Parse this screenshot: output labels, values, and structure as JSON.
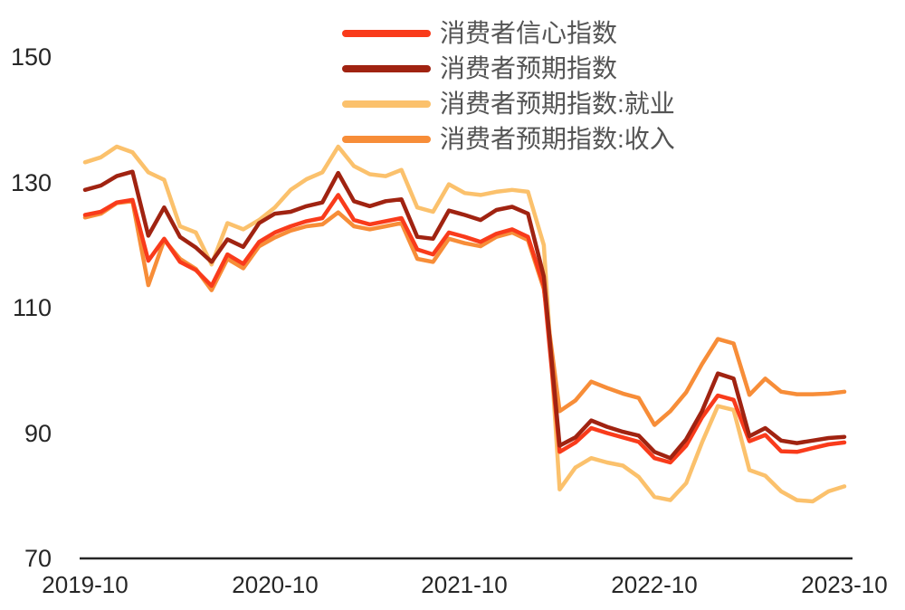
{
  "figure": {
    "background": "#ffffff",
    "accent_colors": {
      "confidence_red": "#F93B1B",
      "expectation_darkred": "#A02311",
      "employment_yellow": "#FBC16C",
      "income_orange": "#F78D38",
      "axis_text": "#262626",
      "legend_text": "#545454"
    }
  },
  "y_axis": {
    "ticks": [
      "150",
      "130",
      "110",
      "90",
      "70"
    ],
    "min": 70,
    "max": 150
  },
  "x_axis": {
    "labels": [
      "2019-10",
      "2020-10",
      "2021-10",
      "2022-10",
      "2023-10"
    ]
  },
  "legend": {
    "items": [
      {
        "label": "消费者信心指数",
        "color": "#F93B1B"
      },
      {
        "label": "消费者预期指数",
        "color": "#A02311"
      },
      {
        "label": "消费者预期指数:就业",
        "color": "#FBC16C"
      },
      {
        "label": "消费者预期指数:收入",
        "color": "#F78D38"
      }
    ]
  },
  "chart_data": {
    "type": "line",
    "title": "",
    "xlabel": "",
    "ylabel": "",
    "ylim": [
      70,
      150
    ],
    "yticks": [
      150,
      130,
      110,
      90,
      70
    ],
    "grid": false,
    "legend_position": "top-center",
    "xtick_labels": [
      "2019-10",
      "2020-10",
      "2021-10",
      "2022-10",
      "2023-10"
    ],
    "x": [
      "2019-10",
      "2019-11",
      "2019-12",
      "2020-01",
      "2020-02",
      "2020-03",
      "2020-04",
      "2020-05",
      "2020-06",
      "2020-07",
      "2020-08",
      "2020-09",
      "2020-10",
      "2020-11",
      "2020-12",
      "2021-01",
      "2021-02",
      "2021-03",
      "2021-04",
      "2021-05",
      "2021-06",
      "2021-07",
      "2021-08",
      "2021-09",
      "2021-10",
      "2021-11",
      "2021-12",
      "2022-01",
      "2022-02",
      "2022-03",
      "2022-04",
      "2022-05",
      "2022-06",
      "2022-07",
      "2022-08",
      "2022-09",
      "2022-10",
      "2022-11",
      "2022-12",
      "2023-01",
      "2023-02",
      "2023-03",
      "2023-04",
      "2023-05",
      "2023-06",
      "2023-07",
      "2023-08",
      "2023-09",
      "2023-10"
    ],
    "series": [
      {
        "name": "消费者信心指数",
        "color": "#F93B1B",
        "values": [
          124.8,
          125.3,
          126.8,
          127.2,
          117.5,
          121.0,
          117.3,
          116.0,
          113.5,
          118.5,
          117.0,
          120.5,
          122.0,
          123.0,
          123.8,
          124.3,
          128.0,
          124.0,
          123.3,
          123.8,
          124.3,
          119.3,
          118.5,
          122.0,
          121.3,
          120.5,
          121.8,
          122.5,
          121.3,
          113.5,
          87.0,
          88.5,
          90.8,
          90.0,
          89.3,
          88.6,
          86.0,
          85.3,
          88.0,
          92.5,
          96.0,
          95.3,
          88.7,
          89.7,
          87.1,
          87.0,
          87.6,
          88.2,
          88.5
        ]
      },
      {
        "name": "消费者预期指数",
        "color": "#A02311",
        "values": [
          128.8,
          129.5,
          131.0,
          131.7,
          121.5,
          126.0,
          121.3,
          119.6,
          117.3,
          120.9,
          119.7,
          123.5,
          125.0,
          125.3,
          126.2,
          126.8,
          131.5,
          127.0,
          126.2,
          127.0,
          127.3,
          121.3,
          121.0,
          125.5,
          124.8,
          124.0,
          125.6,
          126.1,
          125.0,
          115.0,
          88.0,
          89.3,
          92.0,
          91.0,
          90.2,
          89.6,
          87.0,
          86.0,
          89.0,
          93.5,
          99.5,
          98.7,
          89.5,
          90.8,
          88.8,
          88.4,
          88.8,
          89.2,
          89.4
        ]
      },
      {
        "name": "消费者预期指数:就业",
        "color": "#FBC16C",
        "values": [
          133.2,
          134.0,
          135.7,
          134.8,
          131.6,
          130.4,
          123.0,
          122.0,
          116.9,
          123.5,
          122.5,
          124.0,
          126.0,
          128.8,
          130.5,
          131.6,
          135.7,
          132.6,
          131.3,
          131.0,
          132.0,
          126.0,
          125.3,
          129.7,
          128.3,
          128.0,
          128.5,
          128.8,
          128.5,
          120.0,
          81.0,
          84.5,
          86.0,
          85.3,
          84.8,
          83.0,
          79.8,
          79.3,
          82.0,
          88.5,
          94.3,
          93.7,
          84.1,
          83.2,
          80.7,
          79.3,
          79.1,
          80.7,
          81.5
        ]
      },
      {
        "name": "消费者预期指数:收入",
        "color": "#F78D38",
        "values": [
          124.4,
          125.0,
          126.7,
          127.0,
          113.6,
          120.8,
          117.8,
          116.2,
          112.8,
          117.8,
          116.3,
          119.8,
          121.2,
          122.3,
          123.0,
          123.3,
          125.2,
          123.0,
          122.5,
          123.0,
          123.5,
          117.8,
          117.3,
          121.0,
          120.3,
          119.8,
          121.3,
          122.0,
          120.8,
          113.0,
          93.5,
          95.2,
          98.2,
          97.2,
          96.3,
          95.6,
          91.3,
          93.5,
          96.5,
          101.0,
          105.0,
          104.3,
          96.1,
          98.7,
          96.6,
          96.2,
          96.2,
          96.3,
          96.6
        ]
      }
    ]
  }
}
